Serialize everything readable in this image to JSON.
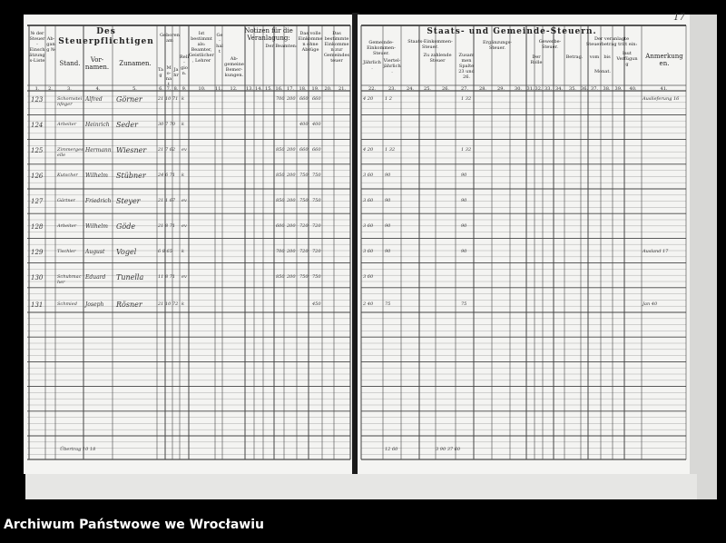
{
  "left_header": {
    "title": "Des Steuerpflichtigen",
    "nr_label": "№ der Steuer-Einschätzungs-Liste",
    "nr_col2": "Ab-gang №",
    "stand": "Stand.",
    "vornamen": "Vor-namen.",
    "zunamen": "Zunamen.",
    "geboren": "Geboren am",
    "tag": "Tag",
    "monat": "Mo-nat",
    "jahr": "Jahr",
    "religion": "Reli-gion.",
    "zu_entrichten": "Ist bestimmt als: Beamter, Geistlicher, Lehrer",
    "col11": "Ge-halt",
    "notizen": "Notizen für die Veranlagung:",
    "der_beamten": "Der Beamten:",
    "col12": "Ab-gemeine Bemer-kungen.",
    "einkommen1": "Das volle Einkommen ohne Abzüge",
    "einkommen2": "Das bestimmte Einkommen zur Gemeindesteuer",
    "col_numbers": [
      "1.",
      "2.",
      "3.",
      "4.",
      "5.",
      "6.",
      "7.",
      "8.",
      "9.",
      "10.",
      "11.",
      "12.",
      "13.",
      "14.",
      "15.",
      "16.",
      "17.",
      "18.",
      "19.",
      "20.",
      "21."
    ]
  },
  "right_header": {
    "title": "Staats- und Gemeinde-Steuern.",
    "gemeinde": "Gemeinde-Einkommen-Steuer.",
    "staats": "Staats-Einkommen-Steuer.",
    "zu_zahlende": "Zu zahlende Steuer",
    "jaehrlich": "Jährlich.",
    "vierteljaehrlich": "Viertel-jährlich.",
    "summe": "Zusammen Spalte 23 und 26.",
    "ergaenzung": "Ergänzungs-Steuer.",
    "gewerbe": "Gewerbe-Steuer.",
    "der_rolle": "Der Rolle",
    "betrag": "Betrag.",
    "veranlagt": "Der veranlagte Steuerbetrag tritt ein:",
    "vom": "vom",
    "bis": "bis",
    "laut": "laut Verfügung",
    "monat": "Monat.",
    "anmerkungen": "Anmerkungen.",
    "col_numbers": [
      "22.",
      "23.",
      "24.",
      "25.",
      "26.",
      "27.",
      "28.",
      "29.",
      "30.",
      "31.",
      "32.",
      "33.",
      "34.",
      "35.",
      "36.",
      "37.",
      "38.",
      "39.",
      "40.",
      "41."
    ]
  },
  "page_number": "17",
  "entries": [
    {
      "nr": "123",
      "stand": "Schornsteinfeger",
      "vorname": "Alfred",
      "zuname": "Görner",
      "geb": "21 10 71",
      "rel": "k",
      "v1": "700",
      "v2": "200",
      "v3": "660",
      "v4": "660",
      "tax": "4 20",
      "tax2": "1 2",
      "sum": "1 32",
      "note": "Auslieferung 16"
    },
    {
      "nr": "124",
      "stand": "Arbeiter",
      "vorname": "Heinrich",
      "zuname": "Seder",
      "geb": "30 7 70",
      "rel": "k",
      "v1": "",
      "v2": "",
      "v3": "400",
      "v4": "400",
      "tax": "",
      "tax2": "",
      "sum": "",
      "note": ""
    },
    {
      "nr": "125",
      "stand": "Zimmergeselle",
      "vorname": "Hermann",
      "zuname": "Wiesner",
      "geb": "21 7 62",
      "rel": "ev",
      "v1": "850",
      "v2": "200",
      "v3": "660",
      "v4": "660",
      "tax": "4 20",
      "tax2": "1 32",
      "sum": "1 32",
      "note": ""
    },
    {
      "nr": "126",
      "stand": "Kutscher",
      "vorname": "Wilhelm",
      "zuname": "Stübner",
      "geb": "24 6 71",
      "rel": "k",
      "v1": "850",
      "v2": "200",
      "v3": "750",
      "v4": "750",
      "tax": "3 60",
      "tax2": "90",
      "sum": "90",
      "note": ""
    },
    {
      "nr": "127",
      "stand": "Gärtner",
      "vorname": "Friedrich",
      "zuname": "Steyer",
      "geb": "21 1 67",
      "rel": "ev",
      "v1": "850",
      "v2": "200",
      "v3": "750",
      "v4": "750",
      "tax": "3 60",
      "tax2": "90",
      "sum": "90",
      "note": ""
    },
    {
      "nr": "128",
      "stand": "Arbeiter",
      "vorname": "Wilhelm",
      "zuname": "Göde",
      "geb": "21 8 71",
      "rel": "ev",
      "v1": "600",
      "v2": "200",
      "v3": "720",
      "v4": "720",
      "tax": "3 60",
      "tax2": "90",
      "sum": "90",
      "note": ""
    },
    {
      "nr": "129",
      "stand": "Tischler",
      "vorname": "August",
      "zuname": "Vogel",
      "geb": "6 8 65",
      "rel": "k",
      "v1": "700",
      "v2": "200",
      "v3": "720",
      "v4": "720",
      "tax": "3 60",
      "tax2": "90",
      "sum": "90",
      "note": "Ausland 17"
    },
    {
      "nr": "130",
      "stand": "Schuhmacher",
      "vorname": "Eduard",
      "zuname": "Tunella",
      "geb": "11 8 71",
      "rel": "ev",
      "v1": "850",
      "v2": "200",
      "v3": "750",
      "v4": "750",
      "tax": "3 60",
      "tax2": "",
      "sum": "",
      "note": ""
    },
    {
      "nr": "131",
      "stand": "Schmied",
      "vorname": "Joseph",
      "zuname": "Rösner",
      "geb": "21 10 72",
      "rel": "k",
      "v1": "",
      "v2": "",
      "v3": "",
      "v4": "450",
      "tax": "2 40",
      "tax2": "75",
      "sum": "75",
      "note": "Jan 40"
    }
  ],
  "summary": {
    "left_total": "Übertrag 10 18",
    "right_total": "12 60",
    "right_total2": "3 90  37 60"
  },
  "footer": "Archiwum Państwowe we Wrocławiu"
}
